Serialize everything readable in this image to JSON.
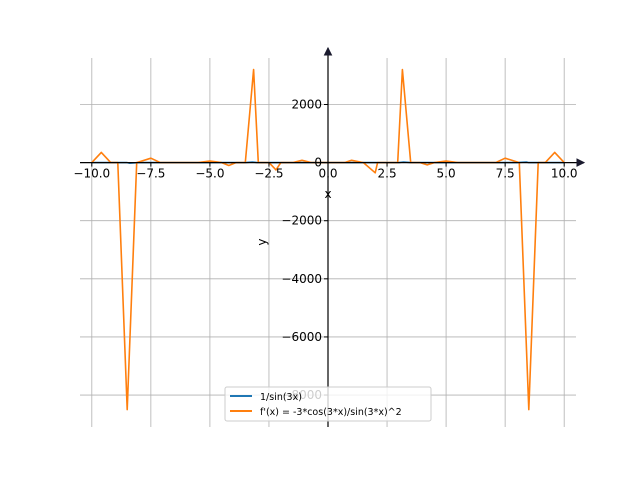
{
  "chart_data": {
    "type": "line",
    "xlabel": "x",
    "ylabel": "y",
    "xlim": [
      -10.5,
      10.5
    ],
    "ylim": [
      -9100,
      3600
    ],
    "xticks": [
      -10,
      -7.5,
      -5,
      -2.5,
      0,
      2.5,
      5,
      7.5,
      10
    ],
    "xtick_labels": [
      "−10.0",
      "−7.5",
      "−5.0",
      "−2.5",
      "0.0",
      "2.5",
      "5.0",
      "7.5",
      "10.0"
    ],
    "yticks": [
      -8000,
      -6000,
      -4000,
      -2000,
      0,
      2000
    ],
    "ytick_labels": [
      "−8000",
      "−6000",
      "−4000",
      "−2000",
      "0",
      "2000"
    ],
    "grid": true,
    "legend_position": "lower-center",
    "series": [
      {
        "name": "1/sin(3x)",
        "color": "#1f77b4",
        "x": [
          -10,
          -9.5,
          -9,
          -8.5,
          -8.4,
          -8,
          -7.5,
          -7,
          -6.5,
          -6,
          -5.5,
          -5,
          -4.5,
          -4,
          -3.5,
          -3.2,
          -3,
          -2.5,
          -2,
          -1.5,
          -1,
          -0.5,
          0.5,
          1,
          1.5,
          2,
          2.5,
          3,
          3.2,
          3.5,
          4,
          4.5,
          5,
          5.5,
          6,
          6.5,
          7,
          7.5,
          8,
          8.4,
          8.5,
          9,
          9.5,
          10
        ],
        "y": [
          0,
          0,
          0,
          0,
          -20,
          0,
          0,
          0,
          0,
          0,
          0,
          0,
          0,
          0,
          0,
          20,
          0,
          0,
          0,
          0,
          0,
          0,
          0,
          0,
          0,
          0,
          0,
          0,
          20,
          0,
          0,
          0,
          0,
          0,
          0,
          0,
          0,
          0,
          0,
          20,
          0,
          0,
          0,
          0
        ]
      },
      {
        "name": "f'(x) = -3*cos(3*x)/sin(3*x)^2",
        "color": "#ff7f0e",
        "x": [
          -10,
          -9.6,
          -9.2,
          -8.9,
          -8.5,
          -8.1,
          -7.5,
          -7.1,
          -6.5,
          -6,
          -5.5,
          -5,
          -4.5,
          -4.2,
          -3.9,
          -3.5,
          -3.15,
          -2.95,
          -2.5,
          -2.2,
          -2,
          -1.5,
          -1.1,
          -0.7,
          -0.3,
          0.3,
          0.7,
          1,
          1.5,
          2,
          2.1,
          2.5,
          2.95,
          3.15,
          3.5,
          3.9,
          4.2,
          4.5,
          5,
          5.5,
          6,
          6.5,
          7.1,
          7.5,
          8.1,
          8.5,
          8.9,
          9.2,
          9.6,
          10
        ],
        "y": [
          0,
          350,
          0,
          0,
          -8500,
          0,
          150,
          0,
          0,
          0,
          0,
          50,
          0,
          -100,
          0,
          0,
          3200,
          0,
          0,
          -250,
          0,
          0,
          80,
          0,
          0,
          0,
          0,
          80,
          0,
          -350,
          0,
          0,
          0,
          3200,
          0,
          0,
          -80,
          0,
          50,
          0,
          0,
          0,
          0,
          150,
          0,
          -8500,
          0,
          0,
          350,
          0
        ]
      }
    ]
  }
}
